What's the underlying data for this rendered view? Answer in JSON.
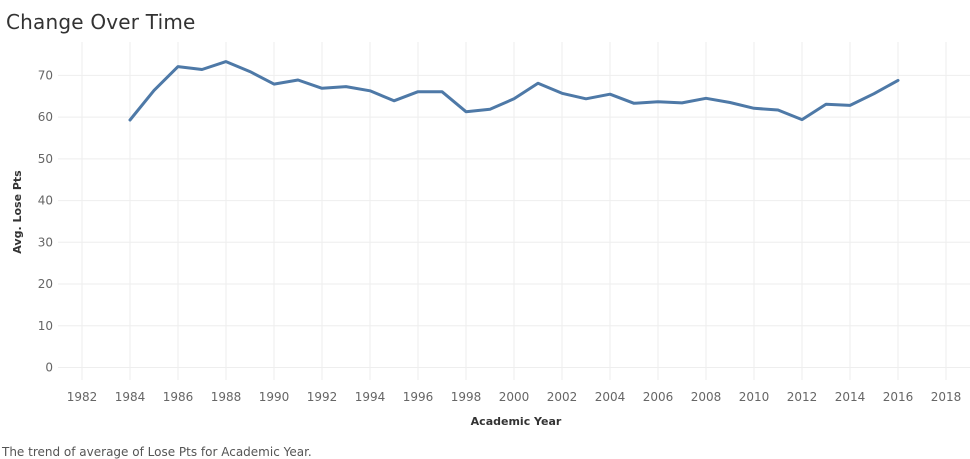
{
  "title": "Change Over Time",
  "caption": "The trend of average of Lose Pts for Academic Year.",
  "colors": {
    "line": "#4e79a7",
    "grid": "#eeeeee",
    "axis_text": "#666666"
  },
  "chart_data": {
    "type": "line",
    "title": "Change Over Time",
    "xlabel": "Academic Year",
    "ylabel": "Avg. Lose Pts",
    "xlim": [
      1981,
      2019
    ],
    "ylim": [
      -3,
      78
    ],
    "x_ticks": [
      1982,
      1984,
      1986,
      1988,
      1990,
      1992,
      1994,
      1996,
      1998,
      2000,
      2002,
      2004,
      2006,
      2008,
      2010,
      2012,
      2014,
      2016,
      2018
    ],
    "y_ticks": [
      0,
      10,
      20,
      30,
      40,
      50,
      60,
      70
    ],
    "grid": true,
    "series": [
      {
        "x": [
          1984,
          1985,
          1986,
          1987,
          1988,
          1989,
          1990,
          1991,
          1992,
          1993,
          1994,
          1995,
          1996,
          1997,
          1998,
          1999,
          2000,
          2001,
          2002,
          2003,
          2004,
          2005,
          2006,
          2007,
          2008,
          2009,
          2010,
          2011,
          2012,
          2013,
          2014,
          2015,
          2016
        ],
        "values": [
          59.3,
          66.4,
          72.1,
          71.4,
          73.3,
          70.9,
          67.9,
          68.9,
          66.9,
          67.3,
          66.3,
          63.9,
          66.1,
          66.1,
          61.3,
          61.9,
          64.4,
          68.1,
          65.7,
          64.4,
          65.5,
          63.3,
          63.7,
          63.4,
          64.5,
          63.5,
          62.1,
          61.7,
          59.4,
          63.1,
          62.8,
          65.6,
          68.8
        ]
      }
    ]
  }
}
